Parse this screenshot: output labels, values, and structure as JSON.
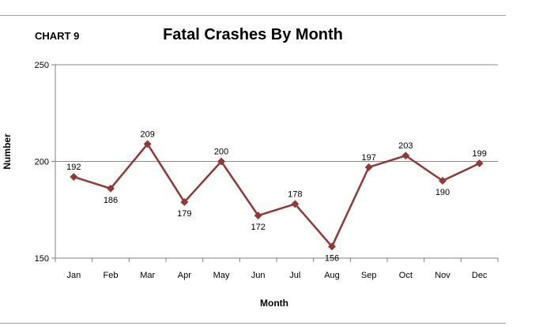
{
  "header": {
    "chart_number": "CHART 9"
  },
  "chart_data": {
    "type": "line",
    "title": "Fatal Crashes By Month",
    "xlabel": "Month",
    "ylabel": "Number",
    "categories": [
      "Jan",
      "Feb",
      "Mar",
      "Apr",
      "May",
      "Jun",
      "Jul",
      "Aug",
      "Sep",
      "Oct",
      "Nov",
      "Dec"
    ],
    "series": [
      {
        "values": [
          192,
          186,
          209,
          179,
          200,
          172,
          178,
          156,
          197,
          203,
          190,
          199
        ],
        "color": "#953735"
      }
    ],
    "ylim": [
      150,
      250
    ],
    "yticks": [
      "150",
      "200",
      "250"
    ],
    "grid": true,
    "legend": "none"
  }
}
